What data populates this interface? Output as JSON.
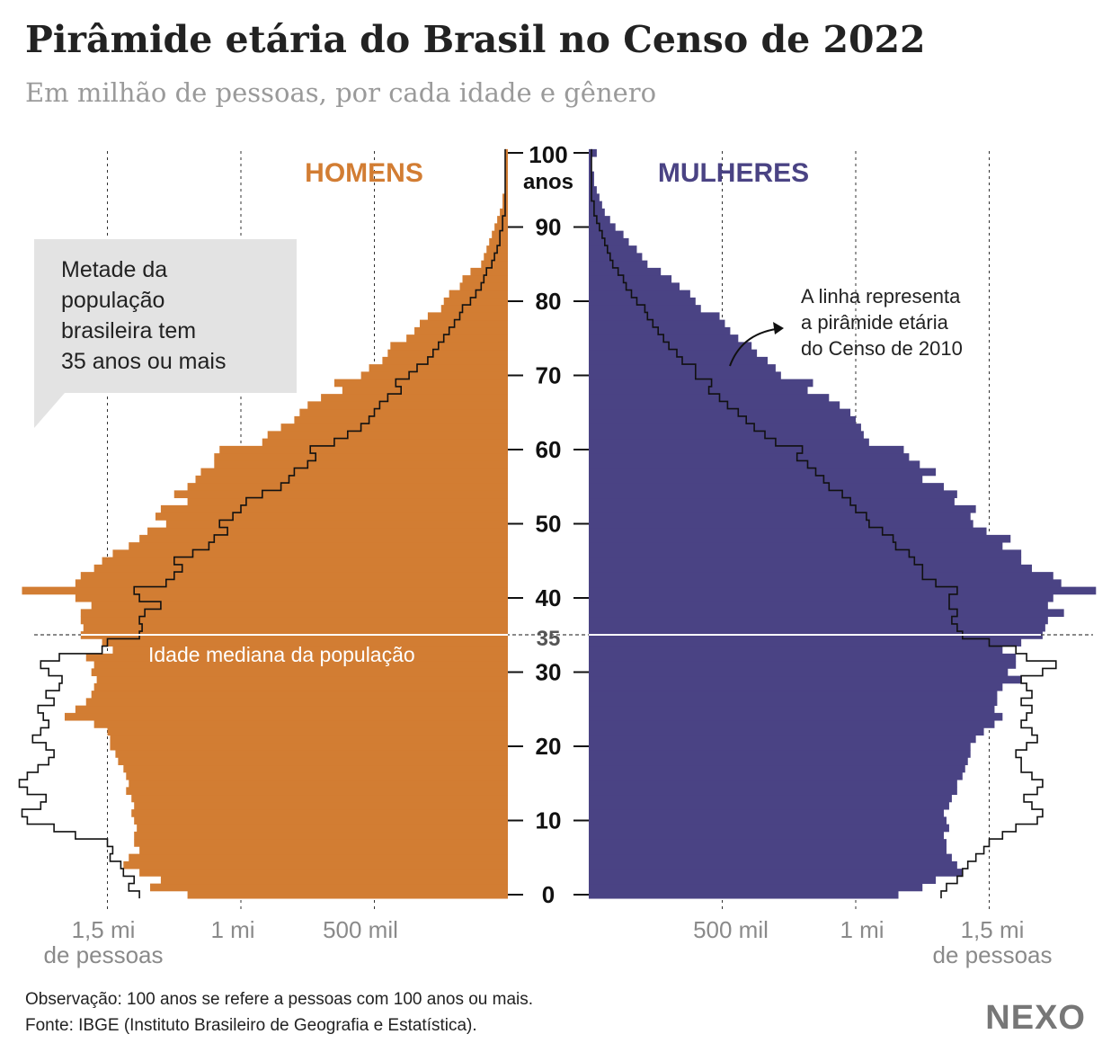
{
  "header": {
    "title": "Pirâmide etária do Brasil no Censo de 2022",
    "subtitle": "Em milhão de pessoas, por cada idade e gênero"
  },
  "labels": {
    "men": "HOMENS",
    "women": "MULHERES",
    "age_top": "100",
    "age_top_unit": "anos",
    "callout_lines": [
      "Metade da",
      "população",
      "brasileira tem",
      "35 anos ou mais"
    ],
    "median_label": "Idade mediana da população",
    "median_age": "35",
    "annotation_lines": [
      "A linha representa",
      "a pirâmide etária",
      "do Censo de 2010"
    ],
    "unit_line": "de pessoas",
    "note": "Observação: 100 anos se refere a pessoas com 100 anos ou mais.",
    "source": "Fonte: IBGE (Instituto Brasileiro de Geografia e Estatística).",
    "logo": "NEXO"
  },
  "colors": {
    "men": "#d27d33",
    "women": "#4a4384",
    "callout_bg": "#e3e3e3",
    "text": "#222222",
    "muted": "#8a8a8a"
  },
  "chart_data": {
    "type": "bar",
    "orientation": "horizontal-pyramid",
    "y_axis": {
      "min": 0,
      "max": 100,
      "ticks": [
        0,
        10,
        20,
        30,
        40,
        50,
        60,
        70,
        80,
        90
      ]
    },
    "x_axis": {
      "unit": "million people",
      "max": 1.5,
      "gridlines": [
        0.5,
        1.0,
        1.5
      ],
      "left_tick_labels": [
        "1,5 mi",
        "1 mi",
        "500 mil"
      ],
      "right_tick_labels": [
        "500 mil",
        "1 mi",
        "1,5 mi"
      ]
    },
    "median_age": 35,
    "ages": [
      0,
      1,
      2,
      3,
      4,
      5,
      6,
      7,
      8,
      9,
      10,
      11,
      12,
      13,
      14,
      15,
      16,
      17,
      18,
      19,
      20,
      21,
      22,
      23,
      24,
      25,
      26,
      27,
      28,
      29,
      30,
      31,
      32,
      33,
      34,
      35,
      36,
      37,
      38,
      39,
      40,
      41,
      42,
      43,
      44,
      45,
      46,
      47,
      48,
      49,
      50,
      51,
      52,
      53,
      54,
      55,
      56,
      57,
      58,
      59,
      60,
      61,
      62,
      63,
      64,
      65,
      66,
      67,
      68,
      69,
      70,
      71,
      72,
      73,
      74,
      75,
      76,
      77,
      78,
      79,
      80,
      81,
      82,
      83,
      84,
      85,
      86,
      87,
      88,
      89,
      90,
      91,
      92,
      93,
      94,
      95,
      96,
      97,
      98,
      99,
      100
    ],
    "series": [
      {
        "name": "HOMENS",
        "values": [
          1.2,
          1.34,
          1.3,
          1.38,
          1.44,
          1.42,
          1.38,
          1.4,
          1.4,
          1.39,
          1.4,
          1.41,
          1.4,
          1.41,
          1.43,
          1.42,
          1.43,
          1.44,
          1.46,
          1.47,
          1.49,
          1.49,
          1.5,
          1.55,
          1.66,
          1.62,
          1.58,
          1.56,
          1.55,
          1.54,
          1.56,
          1.55,
          1.58,
          1.48,
          1.52,
          1.6,
          1.59,
          1.6,
          1.6,
          1.56,
          1.62,
          1.82,
          1.62,
          1.6,
          1.55,
          1.52,
          1.48,
          1.42,
          1.38,
          1.35,
          1.28,
          1.32,
          1.3,
          1.2,
          1.25,
          1.2,
          1.17,
          1.15,
          1.1,
          1.1,
          1.08,
          0.92,
          0.9,
          0.85,
          0.8,
          0.78,
          0.75,
          0.7,
          0.62,
          0.65,
          0.55,
          0.52,
          0.47,
          0.45,
          0.44,
          0.38,
          0.35,
          0.33,
          0.3,
          0.25,
          0.24,
          0.22,
          0.18,
          0.17,
          0.14,
          0.1,
          0.09,
          0.08,
          0.07,
          0.06,
          0.05,
          0.04,
          0.03,
          0.02,
          0.02,
          0.01,
          0.01,
          0.01,
          0.01,
          0.01,
          0.01
        ]
      },
      {
        "name": "MULHERES",
        "values": [
          1.16,
          1.25,
          1.3,
          1.4,
          1.38,
          1.36,
          1.34,
          1.34,
          1.33,
          1.35,
          1.34,
          1.33,
          1.35,
          1.36,
          1.38,
          1.38,
          1.4,
          1.41,
          1.42,
          1.43,
          1.43,
          1.45,
          1.48,
          1.52,
          1.55,
          1.52,
          1.53,
          1.53,
          1.55,
          1.62,
          1.57,
          1.6,
          1.6,
          1.55,
          1.62,
          1.7,
          1.71,
          1.72,
          1.78,
          1.72,
          1.74,
          1.9,
          1.77,
          1.74,
          1.66,
          1.62,
          1.62,
          1.55,
          1.58,
          1.49,
          1.44,
          1.43,
          1.45,
          1.37,
          1.38,
          1.33,
          1.25,
          1.3,
          1.24,
          1.2,
          1.18,
          1.05,
          1.03,
          1.02,
          1.0,
          0.98,
          0.94,
          0.9,
          0.82,
          0.84,
          0.72,
          0.7,
          0.67,
          0.63,
          0.61,
          0.56,
          0.53,
          0.51,
          0.49,
          0.42,
          0.4,
          0.38,
          0.34,
          0.31,
          0.27,
          0.22,
          0.2,
          0.18,
          0.15,
          0.13,
          0.1,
          0.08,
          0.06,
          0.05,
          0.04,
          0.03,
          0.02,
          0.02,
          0.01,
          0.01,
          0.03
        ]
      },
      {
        "name": "HOMENS 2010",
        "values": [
          1.38,
          1.42,
          1.4,
          1.44,
          1.45,
          1.49,
          1.48,
          1.5,
          1.62,
          1.7,
          1.8,
          1.82,
          1.75,
          1.73,
          1.8,
          1.83,
          1.8,
          1.76,
          1.72,
          1.7,
          1.73,
          1.78,
          1.75,
          1.72,
          1.74,
          1.76,
          1.7,
          1.73,
          1.68,
          1.67,
          1.72,
          1.75,
          1.68,
          1.52,
          1.5,
          1.38,
          1.37,
          1.38,
          1.36,
          1.3,
          1.38,
          1.4,
          1.28,
          1.25,
          1.22,
          1.25,
          1.18,
          1.12,
          1.1,
          1.05,
          1.08,
          1.03,
          1.0,
          0.98,
          0.92,
          0.85,
          0.82,
          0.8,
          0.75,
          0.72,
          0.74,
          0.65,
          0.6,
          0.55,
          0.52,
          0.5,
          0.48,
          0.45,
          0.4,
          0.42,
          0.37,
          0.34,
          0.3,
          0.28,
          0.26,
          0.24,
          0.22,
          0.2,
          0.18,
          0.17,
          0.14,
          0.12,
          0.1,
          0.09,
          0.08,
          0.06,
          0.05,
          0.04,
          0.03,
          0.03,
          0.02,
          0.02,
          0.01,
          0.01,
          0.01,
          0.01,
          0.01,
          0.01,
          0.01,
          0.01,
          0.01
        ]
      },
      {
        "name": "MULHERES 2010",
        "values": [
          1.32,
          1.34,
          1.38,
          1.4,
          1.42,
          1.45,
          1.48,
          1.5,
          1.55,
          1.6,
          1.68,
          1.7,
          1.66,
          1.63,
          1.68,
          1.7,
          1.66,
          1.62,
          1.62,
          1.6,
          1.64,
          1.68,
          1.66,
          1.62,
          1.64,
          1.66,
          1.62,
          1.66,
          1.64,
          1.62,
          1.7,
          1.75,
          1.64,
          1.6,
          1.5,
          1.4,
          1.38,
          1.36,
          1.38,
          1.35,
          1.35,
          1.38,
          1.3,
          1.25,
          1.25,
          1.22,
          1.2,
          1.15,
          1.14,
          1.1,
          1.05,
          1.04,
          1.0,
          0.98,
          0.95,
          0.9,
          0.88,
          0.85,
          0.82,
          0.78,
          0.8,
          0.7,
          0.66,
          0.62,
          0.59,
          0.56,
          0.52,
          0.49,
          0.45,
          0.46,
          0.4,
          0.4,
          0.35,
          0.33,
          0.3,
          0.28,
          0.26,
          0.24,
          0.22,
          0.21,
          0.18,
          0.16,
          0.14,
          0.13,
          0.11,
          0.09,
          0.08,
          0.07,
          0.06,
          0.05,
          0.04,
          0.03,
          0.02,
          0.02,
          0.01,
          0.01,
          0.01,
          0.01,
          0.01,
          0.01,
          0.01
        ]
      }
    ]
  }
}
